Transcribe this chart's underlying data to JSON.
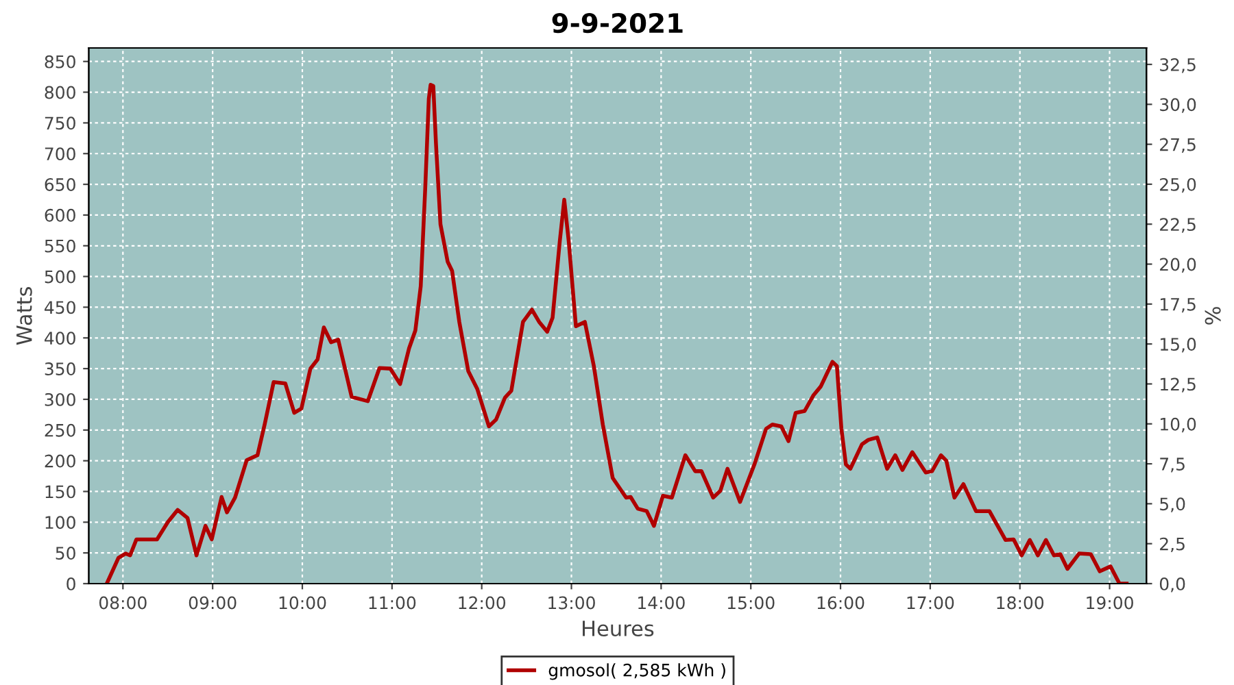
{
  "chart_data": {
    "type": "line",
    "title": "9-9-2021",
    "xlabel": "Heures",
    "ylabel": "Watts",
    "y2label": "%",
    "xlim": [
      7.62,
      19.41
    ],
    "xticks": [
      {
        "value": 8,
        "label": "08:00"
      },
      {
        "value": 9,
        "label": "09:00"
      },
      {
        "value": 10,
        "label": "10:00"
      },
      {
        "value": 11,
        "label": "11:00"
      },
      {
        "value": 12,
        "label": "12:00"
      },
      {
        "value": 13,
        "label": "13:00"
      },
      {
        "value": 14,
        "label": "14:00"
      },
      {
        "value": 15,
        "label": "15:00"
      },
      {
        "value": 16,
        "label": "16:00"
      },
      {
        "value": 17,
        "label": "17:00"
      },
      {
        "value": 18,
        "label": "18:00"
      },
      {
        "value": 19,
        "label": "19:00"
      }
    ],
    "ylim": [
      0,
      872
    ],
    "yticks": [
      0,
      50,
      100,
      150,
      200,
      250,
      300,
      350,
      400,
      450,
      500,
      550,
      600,
      650,
      700,
      750,
      800,
      850
    ],
    "y2lim": [
      0,
      33.53
    ],
    "y2ticks": [
      {
        "value": 0,
        "label": "0,0"
      },
      {
        "value": 2.5,
        "label": "2,5"
      },
      {
        "value": 5,
        "label": "5,0"
      },
      {
        "value": 7.5,
        "label": "7,5"
      },
      {
        "value": 10,
        "label": "10,0"
      },
      {
        "value": 12.5,
        "label": "12,5"
      },
      {
        "value": 15,
        "label": "15,0"
      },
      {
        "value": 17.5,
        "label": "17,5"
      },
      {
        "value": 20,
        "label": "20,0"
      },
      {
        "value": 22.5,
        "label": "22,5"
      },
      {
        "value": 25,
        "label": "25,0"
      },
      {
        "value": 27.5,
        "label": "27,5"
      },
      {
        "value": 30,
        "label": "30,0"
      },
      {
        "value": 32.5,
        "label": "32,5"
      }
    ],
    "grid": true,
    "legend": "bottom",
    "marker": "none",
    "line_style": "solid",
    "series": [
      {
        "name": "gmosol( 2,585 kWh )",
        "color": "#b00000",
        "x": [
          7.82,
          7.95,
          8.03,
          8.08,
          8.15,
          8.38,
          8.5,
          8.61,
          8.72,
          8.82,
          8.92,
          8.99,
          9.1,
          9.16,
          9.25,
          9.38,
          9.5,
          9.58,
          9.68,
          9.81,
          9.91,
          9.99,
          10.09,
          10.17,
          10.24,
          10.32,
          10.4,
          10.55,
          10.73,
          10.86,
          10.98,
          11.09,
          11.19,
          11.26,
          11.32,
          11.37,
          11.41,
          11.43,
          11.46,
          11.49,
          11.54,
          11.62,
          11.67,
          11.75,
          11.85,
          11.95,
          12.08,
          12.16,
          12.26,
          12.33,
          12.46,
          12.56,
          12.64,
          12.73,
          12.79,
          12.87,
          12.92,
          12.97,
          13.05,
          13.15,
          13.25,
          13.35,
          13.46,
          13.61,
          13.66,
          13.74,
          13.84,
          13.92,
          14.02,
          14.12,
          14.27,
          14.38,
          14.45,
          14.58,
          14.66,
          14.74,
          14.88,
          15.04,
          15.17,
          15.24,
          15.34,
          15.42,
          15.5,
          15.6,
          15.7,
          15.78,
          15.91,
          15.96,
          16.01,
          16.06,
          16.11,
          16.24,
          16.31,
          16.41,
          16.52,
          16.61,
          16.69,
          16.8,
          16.95,
          17.02,
          17.12,
          17.18,
          17.27,
          17.37,
          17.51,
          17.66,
          17.84,
          17.93,
          18.02,
          18.11,
          18.2,
          18.29,
          18.38,
          18.45,
          18.53,
          18.66,
          18.79,
          18.89,
          19.01,
          19.11,
          19.19
        ],
        "values": [
          0,
          42,
          49,
          46,
          72,
          72,
          100,
          120,
          107,
          46,
          94,
          72,
          141,
          116,
          140,
          201,
          209,
          259,
          328,
          326,
          278,
          285,
          350,
          365,
          417,
          393,
          397,
          304,
          297,
          351,
          350,
          325,
          383,
          412,
          484,
          643,
          789,
          812,
          810,
          716,
          585,
          524,
          509,
          426,
          346,
          317,
          256,
          267,
          303,
          314,
          426,
          446,
          426,
          410,
          433,
          557,
          625,
          557,
          419,
          426,
          354,
          259,
          172,
          140,
          141,
          122,
          118,
          94,
          143,
          140,
          209,
          183,
          183,
          140,
          151,
          187,
          133,
          194,
          252,
          259,
          256,
          232,
          278,
          281,
          307,
          321,
          361,
          354,
          252,
          194,
          187,
          227,
          234,
          238,
          187,
          209,
          185,
          214,
          181,
          183,
          209,
          200,
          140,
          162,
          118,
          118,
          71,
          72,
          46,
          71,
          46,
          71,
          46,
          48,
          24,
          49,
          48,
          20,
          28,
          0,
          0
        ]
      }
    ]
  }
}
